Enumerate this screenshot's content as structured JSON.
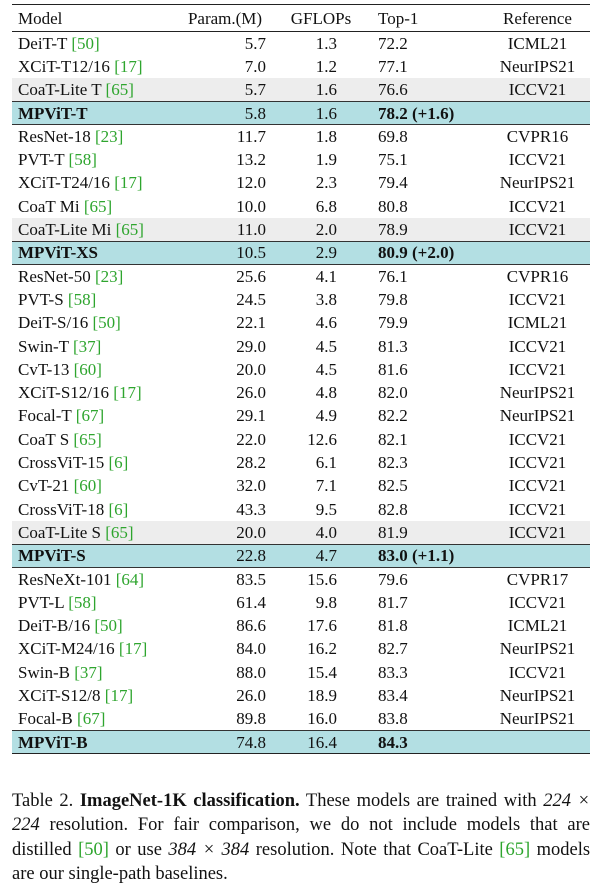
{
  "table": {
    "headers": [
      "Model",
      "Param.(M)",
      "GFLOPs",
      "Top-1",
      "Reference"
    ],
    "rows": [
      {
        "model": "DeiT-T",
        "cite": "50",
        "param": "5.7",
        "gflops": "1.3",
        "top1": "72.2",
        "ref": "ICML21",
        "style": "normal"
      },
      {
        "model": "XCiT-T12/16",
        "cite": "17",
        "param": "7.0",
        "gflops": "1.2",
        "top1": "77.1",
        "ref": "NeurIPS21",
        "style": "normal"
      },
      {
        "model": "CoaT-Lite T",
        "cite": "65",
        "param": "5.7",
        "gflops": "1.6",
        "top1": "76.6",
        "ref": "ICCV21",
        "style": "coat"
      },
      {
        "model": "MPViT-T",
        "cite": "",
        "param": "5.8",
        "gflops": "1.6",
        "top1": "78.2 (+1.6)",
        "ref": "",
        "style": "mpvit"
      },
      {
        "model": "ResNet-18",
        "cite": "23",
        "param": "11.7",
        "gflops": "1.8",
        "top1": "69.8",
        "ref": "CVPR16",
        "style": "normal"
      },
      {
        "model": "PVT-T",
        "cite": "58",
        "param": "13.2",
        "gflops": "1.9",
        "top1": "75.1",
        "ref": "ICCV21",
        "style": "normal"
      },
      {
        "model": "XCiT-T24/16",
        "cite": "17",
        "param": "12.0",
        "gflops": "2.3",
        "top1": "79.4",
        "ref": "NeurIPS21",
        "style": "normal"
      },
      {
        "model": "CoaT Mi",
        "cite": "65",
        "param": "10.0",
        "gflops": "6.8",
        "top1": "80.8",
        "ref": "ICCV21",
        "style": "normal"
      },
      {
        "model": "CoaT-Lite Mi",
        "cite": "65",
        "param": "11.0",
        "gflops": "2.0",
        "top1": "78.9",
        "ref": "ICCV21",
        "style": "coat"
      },
      {
        "model": "MPViT-XS",
        "cite": "",
        "param": "10.5",
        "gflops": "2.9",
        "top1": "80.9 (+2.0)",
        "ref": "",
        "style": "mpvit"
      },
      {
        "model": "ResNet-50",
        "cite": "23",
        "param": "25.6",
        "gflops": "4.1",
        "top1": "76.1",
        "ref": "CVPR16",
        "style": "normal"
      },
      {
        "model": "PVT-S",
        "cite": "58",
        "param": "24.5",
        "gflops": "3.8",
        "top1": "79.8",
        "ref": "ICCV21",
        "style": "normal"
      },
      {
        "model": "DeiT-S/16",
        "cite": "50",
        "param": "22.1",
        "gflops": "4.6",
        "top1": "79.9",
        "ref": "ICML21",
        "style": "normal"
      },
      {
        "model": "Swin-T",
        "cite": "37",
        "param": "29.0",
        "gflops": "4.5",
        "top1": "81.3",
        "ref": "ICCV21",
        "style": "normal"
      },
      {
        "model": "CvT-13",
        "cite": "60",
        "param": "20.0",
        "gflops": "4.5",
        "top1": "81.6",
        "ref": "ICCV21",
        "style": "normal"
      },
      {
        "model": "XCiT-S12/16",
        "cite": "17",
        "param": "26.0",
        "gflops": "4.8",
        "top1": "82.0",
        "ref": "NeurIPS21",
        "style": "normal"
      },
      {
        "model": "Focal-T",
        "cite": "67",
        "param": "29.1",
        "gflops": "4.9",
        "top1": "82.2",
        "ref": "NeurIPS21",
        "style": "normal"
      },
      {
        "model": "CoaT S",
        "cite": "65",
        "param": "22.0",
        "gflops": "12.6",
        "top1": "82.1",
        "ref": "ICCV21",
        "style": "normal"
      },
      {
        "model": "CrossViT-15",
        "cite": "6",
        "param": "28.2",
        "gflops": "6.1",
        "top1": "82.3",
        "ref": "ICCV21",
        "style": "normal"
      },
      {
        "model": "CvT-21",
        "cite": "60",
        "param": "32.0",
        "gflops": "7.1",
        "top1": "82.5",
        "ref": "ICCV21",
        "style": "normal"
      },
      {
        "model": "CrossViT-18",
        "cite": "6",
        "param": "43.3",
        "gflops": "9.5",
        "top1": "82.8",
        "ref": "ICCV21",
        "style": "normal"
      },
      {
        "model": "CoaT-Lite S",
        "cite": "65",
        "param": "20.0",
        "gflops": "4.0",
        "top1": "81.9",
        "ref": "ICCV21",
        "style": "coat"
      },
      {
        "model": "MPViT-S",
        "cite": "",
        "param": "22.8",
        "gflops": "4.7",
        "top1": "83.0 (+1.1)",
        "ref": "",
        "style": "mpvit"
      },
      {
        "model": "ResNeXt-101",
        "cite": "64",
        "param": "83.5",
        "gflops": "15.6",
        "top1": "79.6",
        "ref": "CVPR17",
        "style": "normal"
      },
      {
        "model": "PVT-L",
        "cite": "58",
        "param": "61.4",
        "gflops": "9.8",
        "top1": "81.7",
        "ref": "ICCV21",
        "style": "normal"
      },
      {
        "model": "DeiT-B/16",
        "cite": "50",
        "param": "86.6",
        "gflops": "17.6",
        "top1": "81.8",
        "ref": "ICML21",
        "style": "normal"
      },
      {
        "model": "XCiT-M24/16",
        "cite": "17",
        "param": "84.0",
        "gflops": "16.2",
        "top1": "82.7",
        "ref": "NeurIPS21",
        "style": "normal"
      },
      {
        "model": "Swin-B",
        "cite": "37",
        "param": "88.0",
        "gflops": "15.4",
        "top1": "83.3",
        "ref": "ICCV21",
        "style": "normal"
      },
      {
        "model": "XCiT-S12/8",
        "cite": "17",
        "param": "26.0",
        "gflops": "18.9",
        "top1": "83.4",
        "ref": "NeurIPS21",
        "style": "normal"
      },
      {
        "model": "Focal-B",
        "cite": "67",
        "param": "89.8",
        "gflops": "16.0",
        "top1": "83.8",
        "ref": "NeurIPS21",
        "style": "normal"
      },
      {
        "model": "MPViT-B",
        "cite": "",
        "param": "74.8",
        "gflops": "16.4",
        "top1": "84.3",
        "ref": "",
        "style": "mpvit"
      }
    ]
  },
  "caption": {
    "label": "Table 2.",
    "title": "ImageNet-1K classification.",
    "s1": "These models are trained with",
    "res1": "224 × 224",
    "s2": "resolution. For fair comparison, we do not include models that are distilled",
    "cite_a": "[50]",
    "s3": "or use",
    "res2": "384 × 384",
    "s4": "resolution. Note that CoaT-Lite",
    "cite_b": "[65]",
    "s5": "models are our single-path baselines."
  },
  "colors": {
    "highlight": "#b3dfe3",
    "baseline_row": "#ededed",
    "citation": "#2ea52e"
  }
}
